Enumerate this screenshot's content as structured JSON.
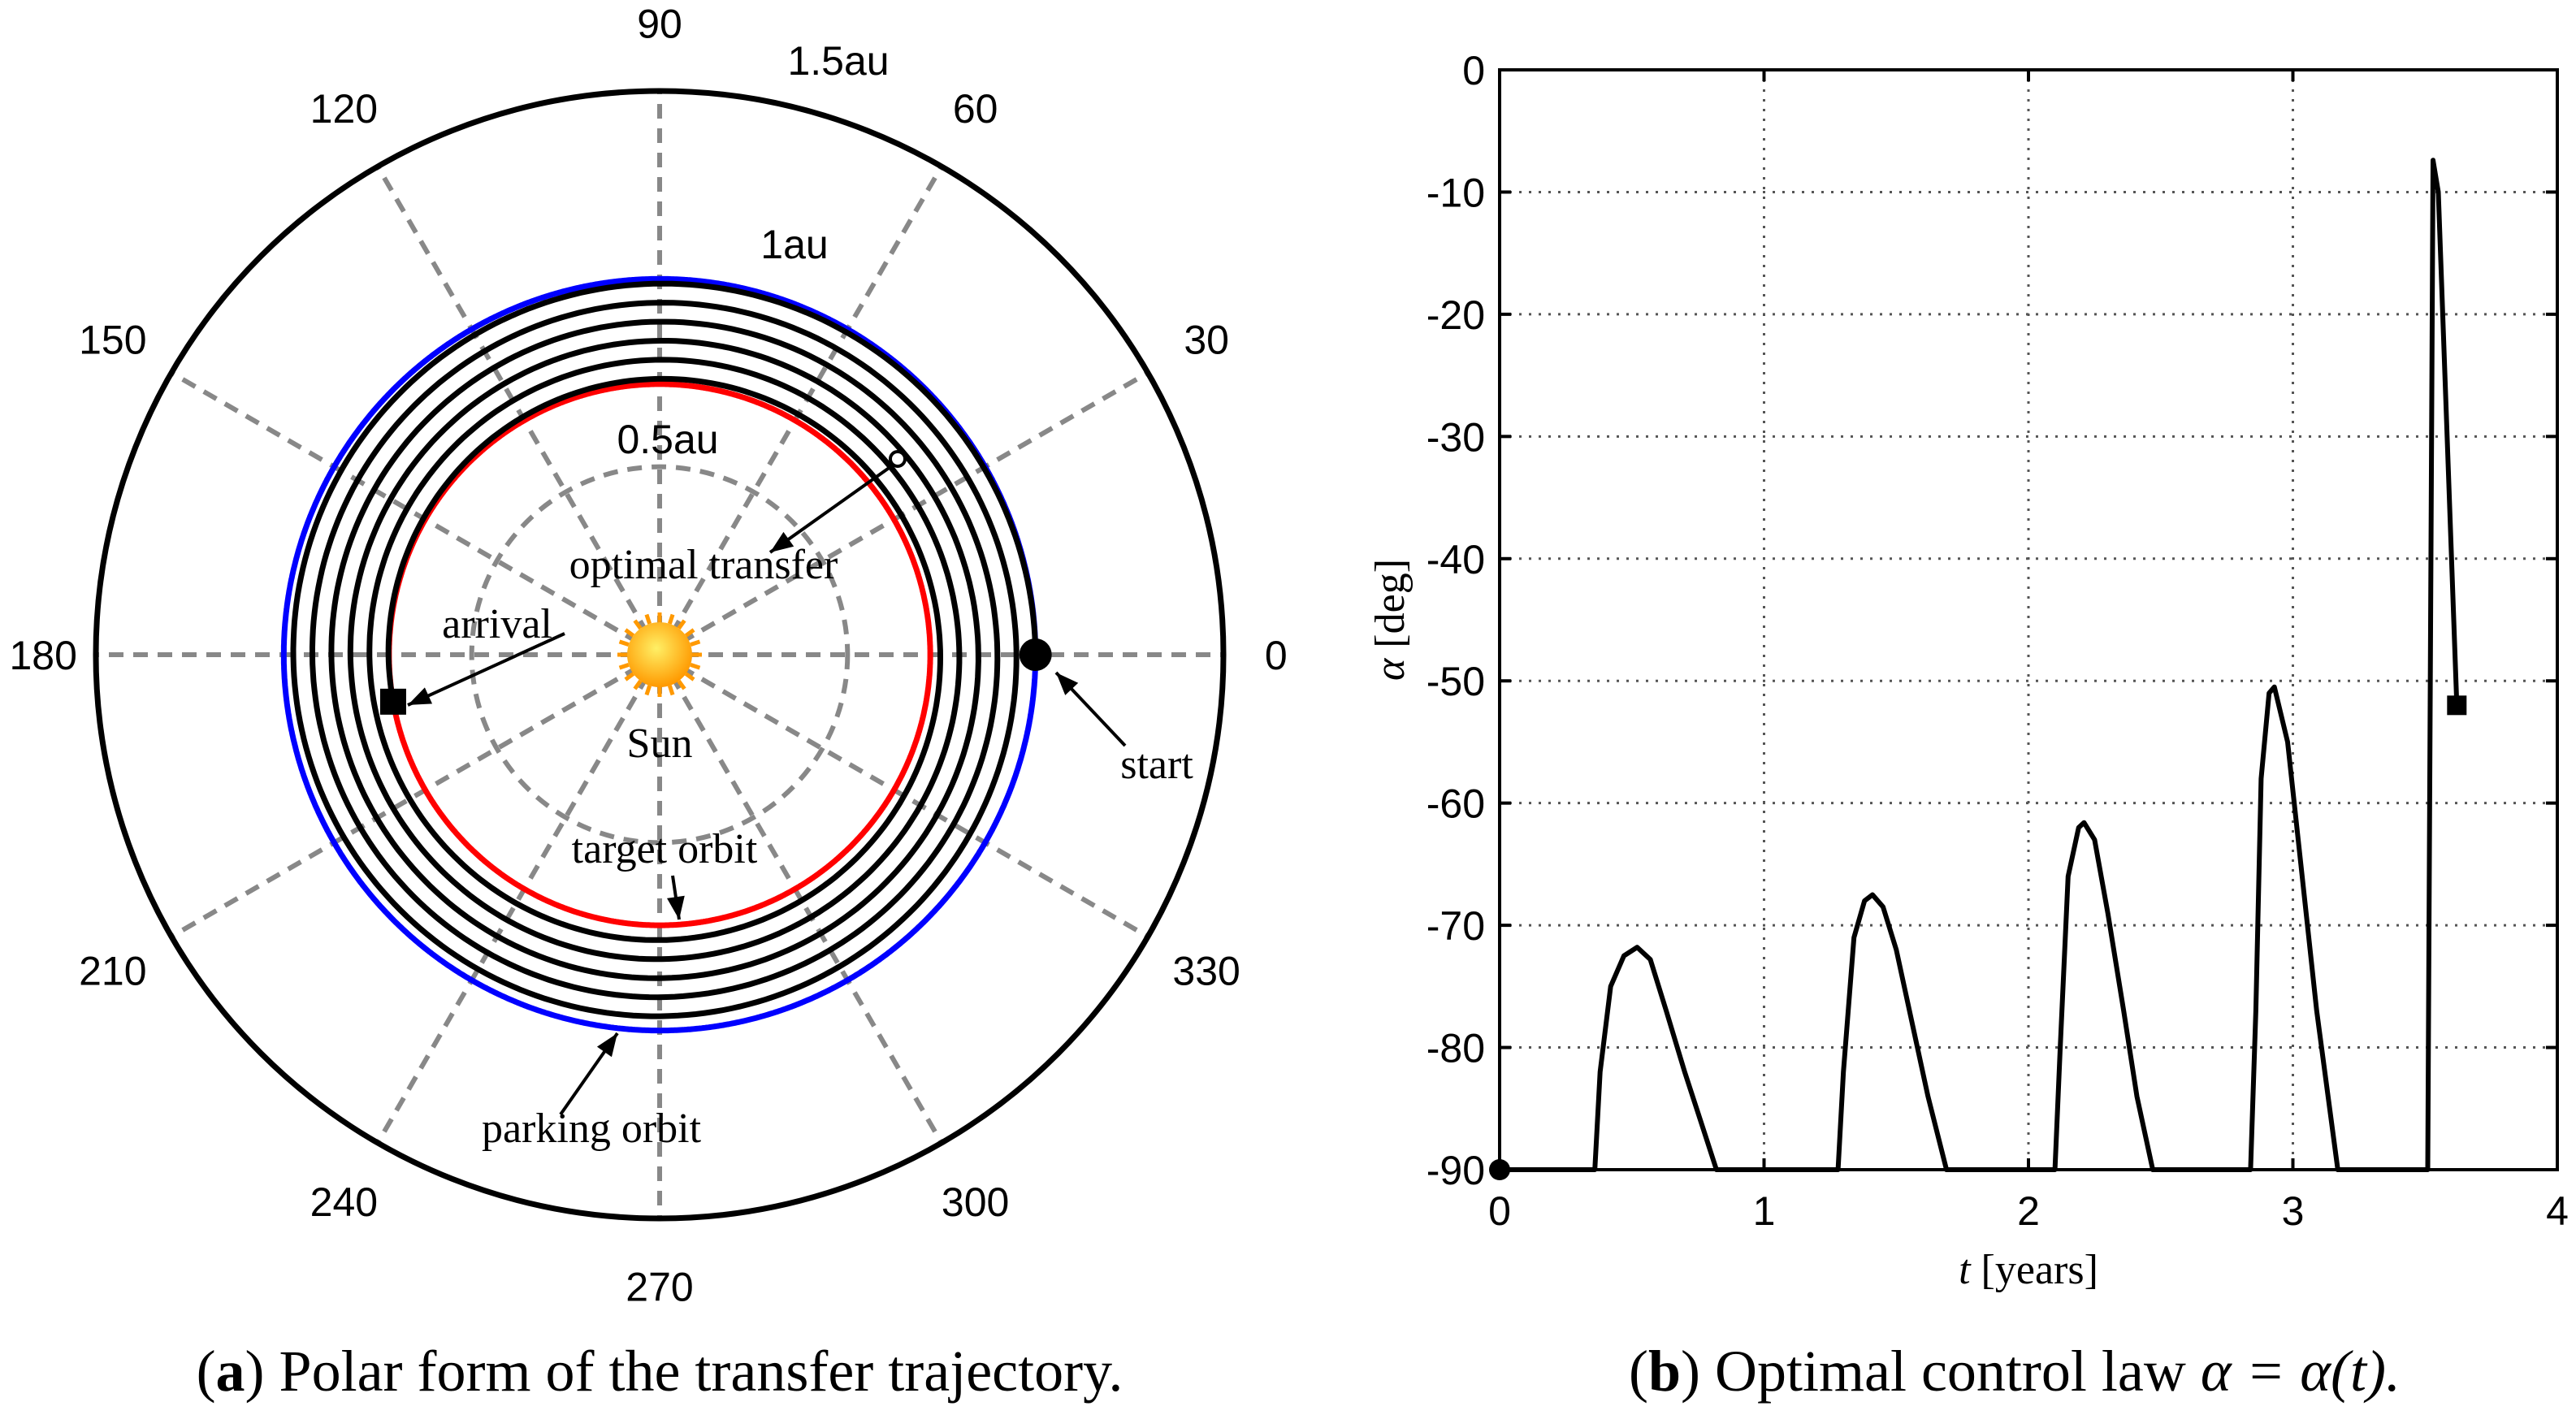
{
  "chart_data": [
    {
      "type": "line",
      "subtype": "polar",
      "panel": "a",
      "caption": {
        "label": "a",
        "text": "Polar form of the transfer trajectory."
      },
      "angle_ticks": [
        "0",
        "30",
        "60",
        "90",
        "120",
        "150",
        "180",
        "210",
        "240",
        "270",
        "300",
        "330"
      ],
      "angle_tick_values_deg": [
        0,
        30,
        60,
        90,
        120,
        150,
        180,
        210,
        240,
        270,
        300,
        330
      ],
      "radial_ticks": [
        {
          "label": "0.5au",
          "value": 0.5
        },
        {
          "label": "1au",
          "value": 1.0
        },
        {
          "label": "1.5au",
          "value": 1.5
        }
      ],
      "rmax": 1.5,
      "grid": true,
      "series": [
        {
          "name": "parking orbit",
          "color": "#0000ff",
          "r": 1.0,
          "theta_start_deg": 0,
          "theta_end_deg": 360
        },
        {
          "name": "target orbit",
          "color": "#ff0000",
          "r": 0.72,
          "theta_start_deg": 0,
          "theta_end_deg": 360
        },
        {
          "name": "optimal transfer",
          "color": "#000000",
          "r_start": 1.0,
          "r_end": 0.72,
          "theta_start_deg": 0,
          "theta_end_deg": 1990
        }
      ],
      "markers": [
        {
          "name": "start",
          "shape": "circle",
          "r": 1.0,
          "theta_deg": 0
        },
        {
          "name": "arrival",
          "shape": "square",
          "r": 0.72,
          "theta_deg": 190
        }
      ],
      "annotations": [
        "Sun",
        "optimal transfer",
        "arrival",
        "start",
        "target orbit",
        "parking orbit"
      ]
    },
    {
      "type": "line",
      "panel": "b",
      "caption": {
        "label": "b",
        "text": "Optimal control law",
        "equation": "α = α(t)."
      },
      "xlabel": "t [years]",
      "ylabel": "α [deg]",
      "xlim": [
        0,
        4
      ],
      "ylim": [
        -90,
        0
      ],
      "xticks": [
        "0",
        "1",
        "2",
        "3",
        "4"
      ],
      "yticks": [
        "0",
        "-10",
        "-20",
        "-30",
        "-40",
        "-50",
        "-60",
        "-70",
        "-80",
        "-90"
      ],
      "grid": true,
      "series": [
        {
          "name": "alpha",
          "color": "#000000",
          "x": [
            0,
            0.36,
            0.38,
            0.42,
            0.47,
            0.52,
            0.57,
            0.63,
            0.7,
            0.76,
            0.82,
            1.28,
            1.3,
            1.34,
            1.38,
            1.41,
            1.45,
            1.5,
            1.56,
            1.62,
            1.69,
            2.1,
            2.12,
            2.15,
            2.19,
            2.21,
            2.25,
            2.3,
            2.36,
            2.41,
            2.47,
            2.84,
            2.86,
            2.88,
            2.91,
            2.93,
            2.98,
            3.03,
            3.09,
            3.17,
            3.51,
            3.53,
            3.55,
            3.62
          ],
          "y": [
            -90,
            -90,
            -82,
            -75,
            -72.5,
            -71.8,
            -72.8,
            -77,
            -82,
            -86,
            -90,
            -90,
            -82,
            -71,
            -68,
            -67.5,
            -68.5,
            -72,
            -78,
            -84,
            -90,
            -90,
            -80,
            -66,
            -62,
            -61.6,
            -63,
            -69,
            -77,
            -84,
            -90,
            -90,
            -77,
            -58,
            -51,
            -50.5,
            -55,
            -65,
            -77,
            -90,
            -90,
            -7.4,
            -10,
            -52
          ]
        }
      ],
      "markers": [
        {
          "shape": "circle",
          "x": 0,
          "y": -90
        },
        {
          "shape": "square",
          "x": 3.62,
          "y": -52
        }
      ]
    }
  ]
}
